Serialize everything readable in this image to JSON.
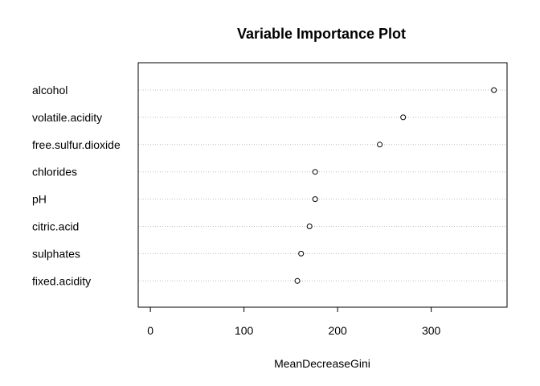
{
  "chart_data": {
    "type": "scatter",
    "title": "Variable Importance Plot",
    "xlabel": "MeanDecreaseGini",
    "ylabel": "",
    "xlim": [
      -13,
      381
    ],
    "xticks": [
      0,
      100,
      200,
      300
    ],
    "grid": "horizontal-dotted",
    "point_style": "open-circle",
    "categories": [
      "alcohol",
      "volatile.acidity",
      "free.sulfur.dioxide",
      "chlorides",
      "pH",
      "citric.acid",
      "sulphates",
      "fixed.acidity"
    ],
    "values": [
      367,
      270,
      245,
      176,
      176,
      170,
      161,
      157
    ]
  }
}
